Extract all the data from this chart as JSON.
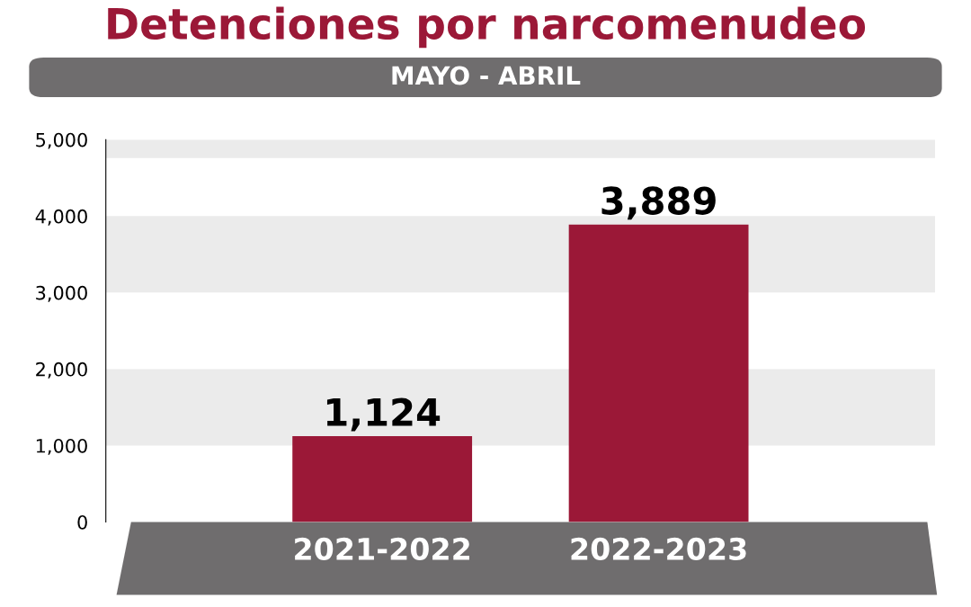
{
  "chart_data": {
    "type": "bar",
    "title": "Detenciones por narcomenudeo",
    "subtitle": "MAYO - ABRIL",
    "categories": [
      "2021-2022",
      "2022-2023"
    ],
    "values": [
      1124,
      3889
    ],
    "color": "#9b1837",
    "ylim": [
      0,
      5000
    ],
    "yticks": [
      {
        "value": 0,
        "label": "0"
      },
      {
        "value": 1000,
        "label": "1,000"
      },
      {
        "value": 2000,
        "label": "2,000"
      },
      {
        "value": 3000,
        "label": "3,000"
      },
      {
        "value": 4000,
        "label": "4,000"
      },
      {
        "value": 5000,
        "label": "5,000"
      }
    ],
    "value_labels": [
      "1,124",
      "3,889"
    ],
    "bands": [
      {
        "axis": "y",
        "from": 1000,
        "to": 2000,
        "color": "#ebebeb"
      },
      {
        "axis": "y",
        "from": 3000,
        "to": 4000,
        "color": "#ebebeb"
      },
      {
        "axis": "y",
        "from": 4760,
        "to": 5000,
        "color": "#ebebeb"
      }
    ],
    "grid": false
  }
}
